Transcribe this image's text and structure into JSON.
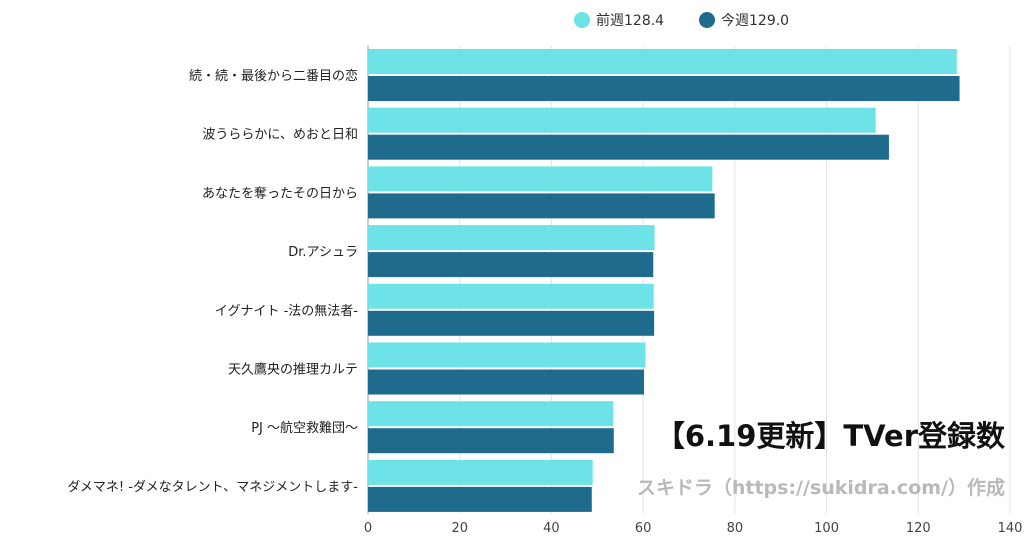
{
  "chart_data": {
    "type": "bar",
    "orientation": "horizontal",
    "categories": [
      "続・続・最後から二番目の恋",
      "波うららかに、めおと日和",
      "あなたを奪ったその日から",
      "Dr.アシュラ",
      "イグナイト -法の無法者-",
      "天久鷹央の推理カルテ",
      "PJ ～航空救難団～",
      "ダメマネ! -ダメなタレント、マネジメントします-"
    ],
    "series": [
      {
        "name": "前週128.4",
        "color": "#6de3e8",
        "values": [
          128.4,
          110.7,
          75.1,
          62.5,
          62.3,
          60.5,
          53.5,
          49.0
        ]
      },
      {
        "name": "今週129.0",
        "color": "#1e6b8e",
        "values": [
          129.0,
          113.6,
          75.6,
          62.2,
          62.4,
          60.2,
          53.6,
          48.8
        ]
      }
    ],
    "xlim": [
      0,
      140
    ],
    "xticks": [
      0,
      20,
      40,
      60,
      80,
      100,
      120,
      140
    ],
    "grid": true,
    "legend_position": "top"
  },
  "overlay": {
    "title": "【6.19更新】TVer登録数",
    "credit": "スキドラ（https://sukidra.com/）作成"
  }
}
